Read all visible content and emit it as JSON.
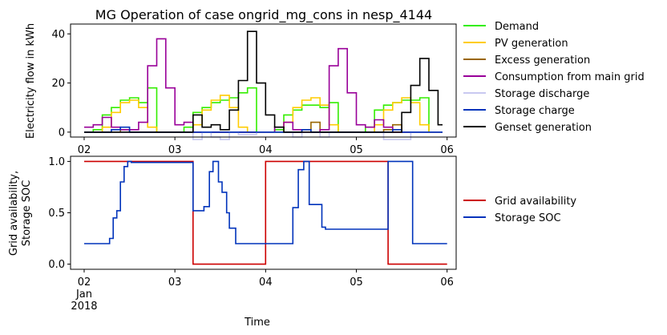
{
  "chart_data": [
    {
      "type": "line",
      "title": "MG Operation of case ongrid_mg_cons in nesp_4144",
      "xlabel": "",
      "ylabel": "Electricity flow in kWh",
      "xlim": [
        1.85,
        6.1
      ],
      "ylim": [
        -2,
        44
      ],
      "yticks": [
        0,
        20,
        40
      ],
      "x_ticks": [
        {
          "value": 2,
          "label": "02"
        },
        {
          "value": 3,
          "label": "03"
        },
        {
          "value": 4,
          "label": "04"
        },
        {
          "value": 5,
          "label": "05"
        },
        {
          "value": 6,
          "label": "06"
        }
      ],
      "grid": false,
      "legend": "outside-right",
      "step": true,
      "series": [
        {
          "name": "Demand",
          "color": "#33ee00",
          "x": [
            2.0,
            2.1,
            2.2,
            2.3,
            2.4,
            2.5,
            2.6,
            2.7,
            2.8,
            2.9,
            3.0,
            3.1,
            3.2,
            3.3,
            3.4,
            3.5,
            3.6,
            3.7,
            3.8,
            3.9,
            4.0,
            4.1,
            4.2,
            4.3,
            4.4,
            4.5,
            4.6,
            4.7,
            4.8,
            4.9,
            5.0,
            5.1,
            5.2,
            5.3,
            5.4,
            5.5,
            5.6,
            5.7,
            5.8,
            5.9
          ],
          "y": [
            0,
            1,
            7,
            10,
            13,
            14,
            12,
            18,
            0,
            0,
            0,
            2,
            8,
            10,
            12,
            13,
            14,
            16,
            18,
            0,
            0,
            1,
            7,
            9,
            11,
            11,
            10,
            12,
            0,
            0,
            0,
            2,
            9,
            11,
            12,
            13,
            13,
            14,
            0,
            0
          ]
        },
        {
          "name": "PV generation",
          "color": "#ffcc00",
          "x": [
            2.0,
            2.1,
            2.2,
            2.3,
            2.4,
            2.5,
            2.6,
            2.7,
            2.8,
            2.9,
            3.0,
            3.1,
            3.2,
            3.3,
            3.4,
            3.5,
            3.6,
            3.7,
            3.8,
            3.9,
            4.0,
            4.1,
            4.2,
            4.3,
            4.4,
            4.5,
            4.6,
            4.7,
            4.8,
            4.9,
            5.0,
            5.1,
            5.2,
            5.3,
            5.4,
            5.5,
            5.6,
            5.7,
            5.8,
            5.9
          ],
          "y": [
            0,
            0,
            2,
            8,
            12,
            13,
            10,
            2,
            0,
            0,
            0,
            0,
            3,
            9,
            13,
            15,
            10,
            2,
            0,
            0,
            0,
            0,
            4,
            10,
            13,
            14,
            11,
            3,
            0,
            0,
            0,
            0,
            3,
            9,
            12,
            14,
            12,
            3,
            0,
            0
          ]
        },
        {
          "name": "Excess generation",
          "color": "#996600",
          "x": [
            2.0,
            2.3,
            2.4,
            2.5,
            4.0,
            4.4,
            4.5,
            4.6,
            5.0,
            5.3,
            5.4,
            5.5,
            5.9
          ],
          "y": [
            0,
            0,
            1,
            0,
            0,
            1,
            4,
            0,
            0,
            1,
            3,
            0,
            0
          ]
        },
        {
          "name": "Consumption from main grid",
          "color": "#990099",
          "x": [
            2.0,
            2.1,
            2.2,
            2.3,
            2.4,
            2.5,
            2.6,
            2.7,
            2.8,
            2.9,
            3.0,
            3.1,
            3.2,
            4.0,
            4.1,
            4.2,
            4.3,
            4.4,
            4.5,
            4.6,
            4.7,
            4.8,
            4.9,
            5.0,
            5.1,
            5.2,
            5.3,
            5.4,
            5.9
          ],
          "y": [
            2,
            3,
            6,
            2,
            1,
            1,
            4,
            27,
            38,
            18,
            3,
            4,
            0,
            0,
            2,
            4,
            1,
            0,
            0,
            1,
            27,
            34,
            16,
            3,
            2,
            5,
            2,
            0,
            0
          ]
        },
        {
          "name": "Storage discharge",
          "color": "#c8c8f0",
          "x": [
            2.0,
            3.2,
            3.3,
            3.4,
            3.5,
            3.6,
            3.7,
            3.9,
            4.3,
            4.4,
            4.6,
            4.7,
            5.3,
            5.4,
            5.6,
            5.9
          ],
          "y": [
            0,
            -3,
            0,
            -2,
            -3,
            0,
            -1,
            0,
            -2,
            0,
            -2,
            0,
            -3,
            -3,
            0,
            0
          ]
        },
        {
          "name": "Storage charge",
          "color": "#0033bb",
          "x": [
            2.0,
            2.3,
            2.4,
            2.5,
            4.3,
            4.4,
            4.5,
            5.3,
            5.4,
            5.5,
            5.9
          ],
          "y": [
            0,
            1,
            2,
            0,
            0,
            1,
            0,
            0,
            1,
            0,
            0
          ]
        },
        {
          "name": "Genset generation",
          "color": "#000000",
          "x": [
            2.0,
            3.2,
            3.3,
            3.4,
            3.5,
            3.6,
            3.7,
            3.8,
            3.9,
            4.0,
            4.1,
            4.2,
            5.4,
            5.5,
            5.6,
            5.7,
            5.8,
            5.9
          ],
          "y": [
            0,
            7,
            2,
            3,
            1,
            9,
            21,
            41,
            20,
            7,
            2,
            0,
            0,
            8,
            19,
            30,
            17,
            3
          ]
        }
      ]
    },
    {
      "type": "line",
      "title": "",
      "xlabel": "Time",
      "ylabel_lines": [
        "Grid availability,",
        "Storage SOC"
      ],
      "xlim": [
        1.85,
        6.1
      ],
      "ylim": [
        -0.05,
        1.05
      ],
      "yticks": [
        {
          "value": 0,
          "label": "0.0"
        },
        {
          "value": 0.5,
          "label": "0.5"
        },
        {
          "value": 1,
          "label": "1.0"
        }
      ],
      "x_ticks": [
        {
          "value": 2,
          "label": "02",
          "sub": [
            "Jan",
            "2018"
          ]
        },
        {
          "value": 3,
          "label": "03"
        },
        {
          "value": 4,
          "label": "04"
        },
        {
          "value": 5,
          "label": "05"
        },
        {
          "value": 6,
          "label": "06"
        }
      ],
      "grid": false,
      "legend": "outside-right",
      "step": true,
      "series": [
        {
          "name": "Grid availability",
          "color": "#cc0000",
          "x": [
            2.0,
            3.2,
            4.0,
            5.35,
            5.95
          ],
          "y": [
            1,
            0,
            1,
            0,
            0
          ]
        },
        {
          "name": "Storage SOC",
          "color": "#0033bb",
          "x": [
            2.0,
            2.28,
            2.32,
            2.36,
            2.4,
            2.44,
            2.48,
            2.52,
            3.2,
            3.32,
            3.38,
            3.42,
            3.48,
            3.52,
            3.57,
            3.6,
            3.67,
            4.3,
            4.36,
            4.42,
            4.48,
            4.62,
            4.66,
            5.35,
            5.62,
            5.95
          ],
          "y": [
            0.2,
            0.25,
            0.45,
            0.52,
            0.8,
            0.95,
            1.0,
            0.99,
            0.52,
            0.56,
            0.9,
            1.0,
            0.8,
            0.7,
            0.5,
            0.35,
            0.2,
            0.55,
            0.92,
            1.0,
            0.58,
            0.36,
            0.34,
            1.0,
            0.2,
            0.2
          ]
        }
      ]
    }
  ]
}
